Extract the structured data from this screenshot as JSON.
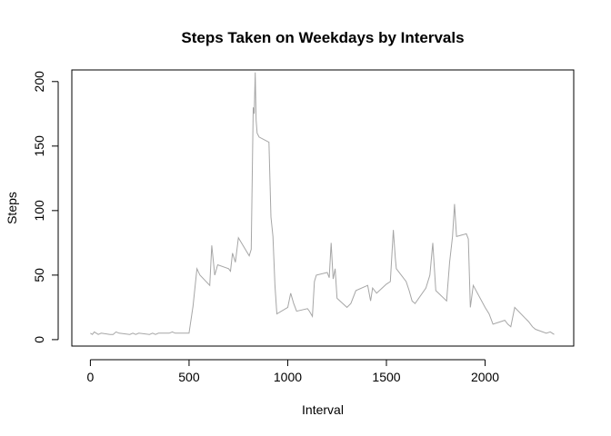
{
  "chart_data": {
    "type": "line",
    "title": "Steps Taken on Weekdays by Intervals",
    "xlabel": "Interval",
    "ylabel": "Steps",
    "xlim": [
      -94,
      2449
    ],
    "ylim": [
      -5,
      209
    ],
    "xticks": [
      0,
      500,
      1000,
      1500,
      2000
    ],
    "yticks": [
      0,
      50,
      100,
      150,
      200
    ],
    "grid": false,
    "colors": {
      "line": "#a6a6a6",
      "axis": "#000000"
    },
    "series": [
      {
        "x": [
          0,
          10,
          20,
          30,
          40,
          55,
          100,
          115,
          130,
          145,
          200,
          215,
          230,
          245,
          300,
          315,
          330,
          345,
          400,
          415,
          430,
          445,
          500,
          520,
          540,
          555,
          605,
          615,
          630,
          645,
          700,
          710,
          720,
          735,
          750,
          805,
          815,
          825,
          830,
          835,
          840,
          845,
          855,
          905,
          915,
          925,
          935,
          945,
          1000,
          1015,
          1030,
          1045,
          1100,
          1110,
          1125,
          1135,
          1145,
          1200,
          1210,
          1220,
          1230,
          1240,
          1250,
          1300,
          1320,
          1345,
          1405,
          1420,
          1430,
          1450,
          1500,
          1520,
          1535,
          1545,
          1550,
          1600,
          1615,
          1630,
          1645,
          1700,
          1720,
          1735,
          1750,
          1805,
          1820,
          1835,
          1845,
          1855,
          1905,
          1915,
          1925,
          1940,
          2000,
          2020,
          2040,
          2100,
          2115,
          2130,
          2150,
          2200,
          2220,
          2240,
          2255,
          2310,
          2330,
          2350
        ],
        "y": [
          5,
          4,
          6,
          5,
          4,
          5,
          4,
          4,
          6,
          5,
          4,
          5,
          4,
          5,
          4,
          5,
          4,
          5,
          5,
          6,
          5,
          5,
          5,
          26,
          55,
          50,
          42,
          73,
          50,
          58,
          55,
          53,
          67,
          60,
          79,
          65,
          70,
          180,
          175,
          207,
          170,
          160,
          157,
          153,
          95,
          80,
          42,
          20,
          25,
          36,
          28,
          22,
          24,
          22,
          18,
          45,
          50,
          52,
          48,
          75,
          47,
          55,
          32,
          25,
          28,
          38,
          42,
          30,
          40,
          36,
          43,
          45,
          85,
          63,
          55,
          45,
          38,
          30,
          28,
          40,
          50,
          75,
          38,
          30,
          60,
          80,
          105,
          80,
          82,
          78,
          25,
          42,
          25,
          20,
          12,
          15,
          12,
          10,
          25,
          17,
          14,
          10,
          8,
          5,
          6,
          4
        ]
      }
    ]
  }
}
